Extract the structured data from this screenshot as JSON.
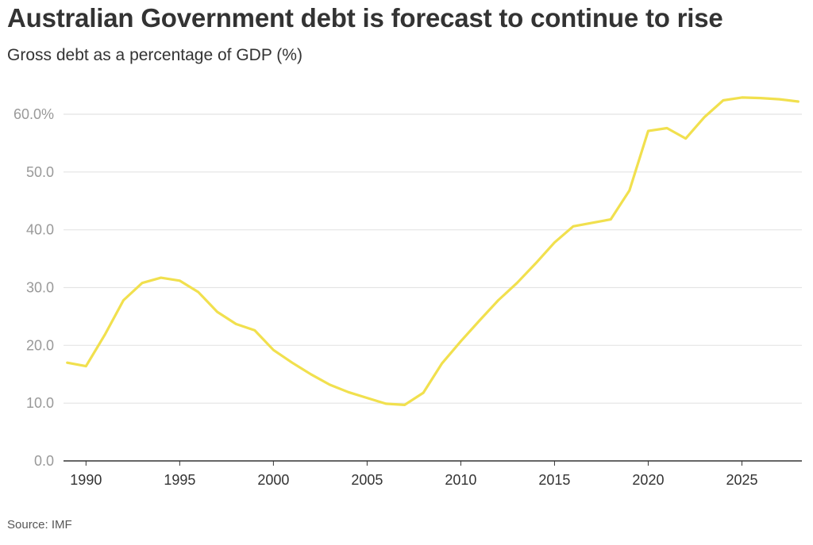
{
  "title": "Australian Government debt is forecast to continue to rise",
  "subtitle": "Gross debt as a percentage of GDP (%)",
  "source": "Source: IMF",
  "colors": {
    "line": "#f1e04e",
    "grid": "#e4e4e4",
    "axis": "#333333"
  },
  "chart_data": {
    "type": "line",
    "title": "Australian Government debt is forecast to continue to rise",
    "subtitle": "Gross debt as a percentage of GDP (%)",
    "xlim": [
      1988.8,
      2028.2
    ],
    "ylim": [
      0,
      65
    ],
    "grid": true,
    "y_ticks": [
      0,
      10,
      20,
      30,
      40,
      50,
      60
    ],
    "y_tick_labels": [
      "0.0",
      "10.0",
      "20.0",
      "30.0",
      "40.0",
      "50.0",
      "60.0%"
    ],
    "x_ticks": [
      1990,
      1995,
      2000,
      2005,
      2010,
      2015,
      2020,
      2025
    ],
    "x_tick_labels": [
      "1990",
      "1995",
      "2000",
      "2005",
      "2010",
      "2015",
      "2020",
      "2025"
    ],
    "series": [
      {
        "x": [
          1989,
          1990,
          1991,
          1992,
          1993,
          1994,
          1995,
          1996,
          1997,
          1998,
          1999,
          2000,
          2001,
          2002,
          2003,
          2004,
          2005,
          2006,
          2007,
          2008,
          2009,
          2010,
          2011,
          2012,
          2013,
          2014,
          2015,
          2016,
          2017,
          2018,
          2019,
          2020,
          2021,
          2022,
          2023,
          2024,
          2025,
          2026,
          2027,
          2028
        ],
        "values": [
          17.0,
          16.4,
          21.8,
          27.8,
          30.8,
          31.7,
          31.2,
          29.2,
          25.8,
          23.7,
          22.6,
          19.2,
          17.0,
          15.0,
          13.2,
          11.9,
          10.9,
          9.9,
          9.7,
          11.8,
          16.9,
          20.7,
          24.3,
          27.8,
          30.8,
          34.2,
          37.8,
          40.6,
          41.2,
          41.8,
          46.8,
          57.1,
          57.6,
          55.8,
          59.5,
          62.4,
          62.9,
          62.8,
          62.6,
          62.2
        ]
      }
    ]
  }
}
